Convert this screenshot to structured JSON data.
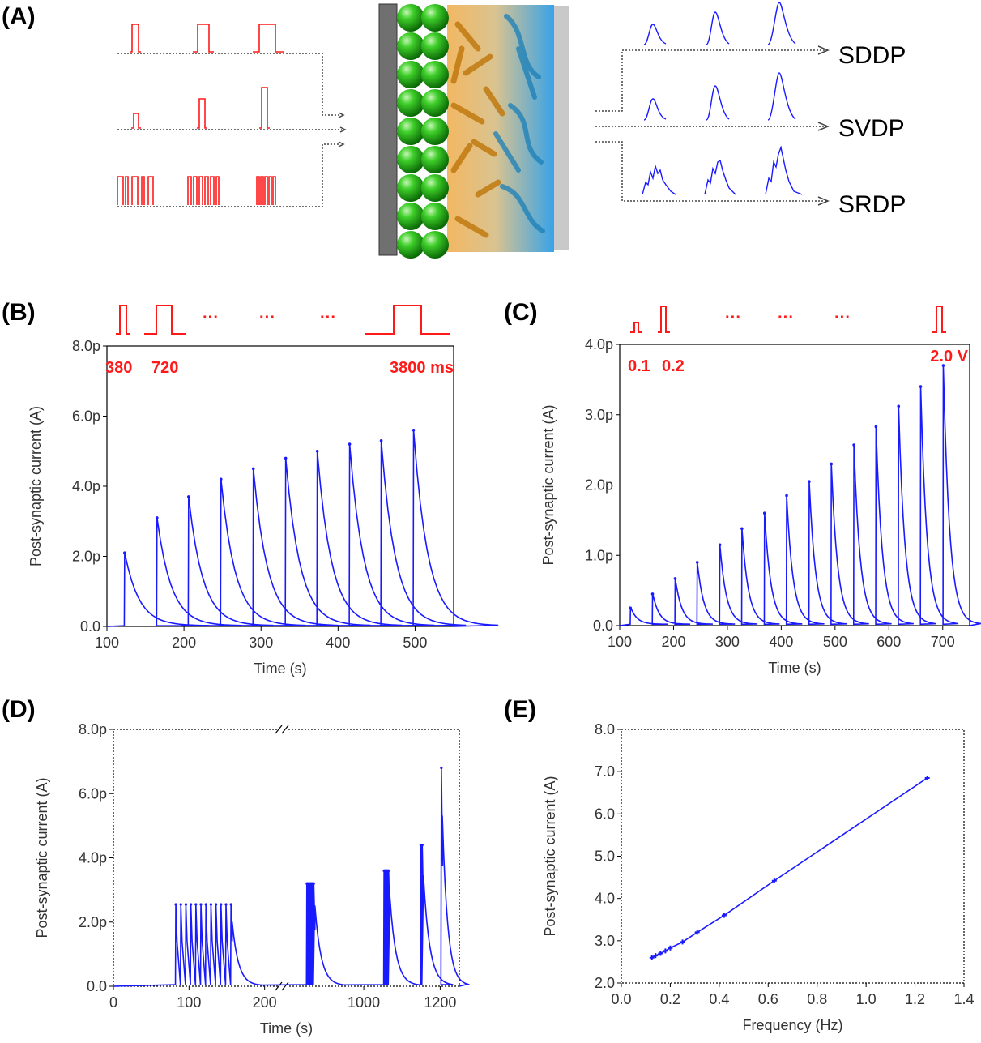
{
  "colors": {
    "trace": "#1a1aff",
    "pulse": "#ff1a1a",
    "axis": "#000000"
  },
  "panelA": {
    "label": "(A)",
    "outputs": [
      "SDDP",
      "SVDP",
      "SRDP"
    ]
  },
  "chart_data": [
    {
      "panel": "(B)",
      "type": "line",
      "xlabel": "Time (s)",
      "ylabel": "Post-synaptic current (A)",
      "xlim": [
        100,
        550
      ],
      "ylim": [
        0,
        8
      ],
      "xticks": [
        "100",
        "200",
        "300",
        "400",
        "500"
      ],
      "yticks": [
        "0.0",
        "2.0p",
        "4.0p",
        "6.0p",
        "8.0p"
      ],
      "annotations": [
        "380",
        "720",
        "3800 ms"
      ],
      "dots": [
        "···",
        "···",
        "···"
      ],
      "spikes": {
        "t": [
          123,
          165,
          206,
          248,
          290,
          332,
          373,
          415,
          456,
          498
        ],
        "peak": [
          2.1,
          3.1,
          3.7,
          4.2,
          4.5,
          4.8,
          5.0,
          5.2,
          5.3,
          5.6
        ]
      }
    },
    {
      "panel": "(C)",
      "type": "line",
      "xlabel": "Time (s)",
      "ylabel": "Post-synaptic current (A)",
      "xlim": [
        100,
        750
      ],
      "ylim": [
        0,
        4
      ],
      "xticks": [
        "100",
        "200",
        "300",
        "400",
        "500",
        "600",
        "700"
      ],
      "yticks": [
        "0.0",
        "1.0p",
        "2.0p",
        "3.0p",
        "4.0p"
      ],
      "annotations": [
        "0.1",
        "0.2",
        "2.0 V"
      ],
      "dots": [
        "···",
        "···",
        "···"
      ],
      "spikes": {
        "t": [
          120,
          161,
          203,
          244,
          286,
          327,
          369,
          410,
          452,
          493,
          535,
          576,
          618,
          659,
          701
        ],
        "peak": [
          0.25,
          0.45,
          0.67,
          0.9,
          1.15,
          1.38,
          1.6,
          1.85,
          2.05,
          2.3,
          2.57,
          2.83,
          3.12,
          3.4,
          3.7
        ]
      }
    },
    {
      "panel": "(D)",
      "type": "line",
      "xlabel": "Time (s)",
      "ylabel": "Post-synaptic current (A)",
      "xlim": [
        0,
        1250
      ],
      "ylim": [
        0,
        8
      ],
      "xticks": [
        "0",
        "100",
        "200",
        "",
        "1000",
        "1200"
      ],
      "yticks": [
        "0.0",
        "2.0p",
        "4.0p",
        "6.0p",
        "8.0p"
      ],
      "bursts": [
        {
          "start": 82,
          "end": 155,
          "n": 12,
          "peak": 2.55
        },
        {
          "start": 850,
          "end": 868,
          "n": 10,
          "peak": 3.2
        },
        {
          "start": 1052,
          "end": 1064,
          "n": 9,
          "peak": 3.6
        },
        {
          "start": 1148,
          "end": 1152,
          "n": 4,
          "peak": 4.4
        },
        {
          "start": 1202,
          "end": 1202,
          "n": 1,
          "peak": 6.8
        }
      ]
    },
    {
      "panel": "(E)",
      "type": "line",
      "xlabel": "Frequency (Hz)",
      "ylabel": "Post-synaptic current (A)",
      "xlim": [
        0.0,
        1.4
      ],
      "ylim": [
        2.0,
        8.0
      ],
      "xticks": [
        "0.0",
        "0.2",
        "0.4",
        "0.6",
        "0.8",
        "1.0",
        "1.2",
        "1.4"
      ],
      "yticks": [
        "2.0",
        "3.0",
        "4.0",
        "5.0",
        "6.0",
        "7.0",
        "8.0"
      ],
      "x": [
        0.125,
        0.14,
        0.16,
        0.18,
        0.2,
        0.25,
        0.31,
        0.42,
        0.625,
        1.25
      ],
      "y": [
        2.6,
        2.65,
        2.7,
        2.76,
        2.83,
        2.97,
        3.2,
        3.6,
        4.42,
        6.85
      ]
    }
  ]
}
